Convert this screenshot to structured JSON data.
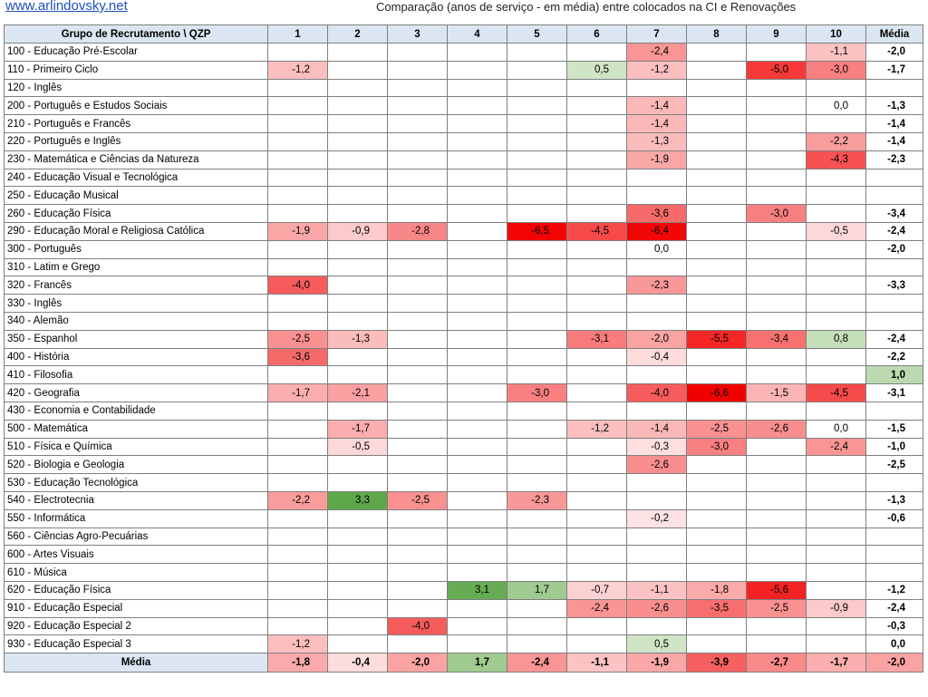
{
  "header": {
    "site": "www.arlindovsky.net",
    "title": "Comparação (anos de serviço - em média) entre colocados na CI e Renovações"
  },
  "table": {
    "corner": "Grupo de Recrutamento \\ QZP",
    "columns": [
      "1",
      "2",
      "3",
      "4",
      "5",
      "6",
      "7",
      "8",
      "9",
      "10",
      "Média"
    ],
    "rows": [
      {
        "label": "100 - Educação Pré-Escolar",
        "cells": [
          "",
          "",
          "",
          "",
          "",
          "",
          "-2,4",
          "",
          "",
          "-1,1",
          "-2,0"
        ]
      },
      {
        "label": "110 - Primeiro Ciclo",
        "cells": [
          "-1,2",
          "",
          "",
          "",
          "",
          "0,5",
          "-1,2",
          "",
          "-5,0",
          "-3,0",
          "-1,7"
        ]
      },
      {
        "label": "120 - Inglês",
        "cells": [
          "",
          "",
          "",
          "",
          "",
          "",
          "",
          "",
          "",
          "",
          ""
        ]
      },
      {
        "label": "200 - Português e Estudos Sociais",
        "cells": [
          "",
          "",
          "",
          "",
          "",
          "",
          "-1,4",
          "",
          "",
          "0,0",
          "-1,3"
        ]
      },
      {
        "label": "210 - Português e Francês",
        "cells": [
          "",
          "",
          "",
          "",
          "",
          "",
          "-1,4",
          "",
          "",
          "",
          "-1,4"
        ]
      },
      {
        "label": "220 - Português e Inglês",
        "cells": [
          "",
          "",
          "",
          "",
          "",
          "",
          "-1,3",
          "",
          "",
          "-2,2",
          "-1,4"
        ]
      },
      {
        "label": "230 - Matemática e Ciências da Natureza",
        "cells": [
          "",
          "",
          "",
          "",
          "",
          "",
          "-1,9",
          "",
          "",
          "-4,3",
          "-2,3"
        ]
      },
      {
        "label": "240 - Educação Visual e Tecnológica",
        "cells": [
          "",
          "",
          "",
          "",
          "",
          "",
          "",
          "",
          "",
          "",
          ""
        ]
      },
      {
        "label": "250 - Educação Musical",
        "cells": [
          "",
          "",
          "",
          "",
          "",
          "",
          "",
          "",
          "",
          "",
          ""
        ]
      },
      {
        "label": "260 - Educação Física",
        "cells": [
          "",
          "",
          "",
          "",
          "",
          "",
          "-3,6",
          "",
          "-3,0",
          "",
          "-3,4"
        ]
      },
      {
        "label": "290 - Educação Moral e Religiosa Católica",
        "cells": [
          "-1,9",
          "-0,9",
          "-2,8",
          "",
          "-6,5",
          "-4,5",
          "-6,4",
          "",
          "",
          "-0,5",
          "-2,4"
        ]
      },
      {
        "label": "300 - Português",
        "cells": [
          "",
          "",
          "",
          "",
          "",
          "",
          "0,0",
          "",
          "",
          "",
          "-2,0"
        ]
      },
      {
        "label": "310 - Latim e Grego",
        "cells": [
          "",
          "",
          "",
          "",
          "",
          "",
          "",
          "",
          "",
          "",
          ""
        ]
      },
      {
        "label": "320 - Francês",
        "cells": [
          "-4,0",
          "",
          "",
          "",
          "",
          "",
          "-2,3",
          "",
          "",
          "",
          "-3,3"
        ]
      },
      {
        "label": "330 - Inglês",
        "cells": [
          "",
          "",
          "",
          "",
          "",
          "",
          "",
          "",
          "",
          "",
          ""
        ]
      },
      {
        "label": "340 - Alemão",
        "cells": [
          "",
          "",
          "",
          "",
          "",
          "",
          "",
          "",
          "",
          "",
          ""
        ]
      },
      {
        "label": "350 - Espanhol",
        "cells": [
          "-2,5",
          "-1,3",
          "",
          "",
          "",
          "-3,1",
          "-2,0",
          "-5,5",
          "-3,4",
          "0,8",
          "-2,4"
        ]
      },
      {
        "label": "400 - História",
        "cells": [
          "-3,6",
          "",
          "",
          "",
          "",
          "",
          "-0,4",
          "",
          "",
          "",
          "-2,2"
        ]
      },
      {
        "label": "410 - Filosofia",
        "cells": [
          "",
          "",
          "",
          "",
          "",
          "",
          "",
          "",
          "",
          "",
          "1,0"
        ]
      },
      {
        "label": "420 - Geografia",
        "cells": [
          "-1,7",
          "-2,1",
          "",
          "",
          "-3,0",
          "",
          "-4,0",
          "-6,6",
          "-1,5",
          "-4,5",
          "-3,1"
        ]
      },
      {
        "label": "430 - Economia  e Contabilidade",
        "cells": [
          "",
          "",
          "",
          "",
          "",
          "",
          "",
          "",
          "",
          "",
          ""
        ]
      },
      {
        "label": "500 - Matemática",
        "cells": [
          "",
          "-1,7",
          "",
          "",
          "",
          "-1,2",
          "-1,4",
          "-2,5",
          "-2,6",
          "0,0",
          "-1,5"
        ]
      },
      {
        "label": "510 - Física e Química",
        "cells": [
          "",
          "-0,5",
          "",
          "",
          "",
          "",
          "-0,3",
          "-3,0",
          "",
          "-2,4",
          "-1,0"
        ]
      },
      {
        "label": "520 - Biologia e Geologia",
        "cells": [
          "",
          "",
          "",
          "",
          "",
          "",
          "-2,6",
          "",
          "",
          "",
          "-2,5"
        ]
      },
      {
        "label": "530 - Educação Tecnológica",
        "cells": [
          "",
          "",
          "",
          "",
          "",
          "",
          "",
          "",
          "",
          "",
          ""
        ]
      },
      {
        "label": "540 - Electrotecnia",
        "cells": [
          "-2,2",
          "3,3",
          "-2,5",
          "",
          "-2,3",
          "",
          "",
          "",
          "",
          "",
          "-1,3"
        ]
      },
      {
        "label": "550 - Informática",
        "cells": [
          "",
          "",
          "",
          "",
          "",
          "",
          "-0,2",
          "",
          "",
          "",
          "-0,6"
        ]
      },
      {
        "label": "560 - Ciências Agro-Pecuárias",
        "cells": [
          "",
          "",
          "",
          "",
          "",
          "",
          "",
          "",
          "",
          "",
          ""
        ]
      },
      {
        "label": "600 - Artes Visuais",
        "cells": [
          "",
          "",
          "",
          "",
          "",
          "",
          "",
          "",
          "",
          "",
          ""
        ]
      },
      {
        "label": "610 - Música",
        "cells": [
          "",
          "",
          "",
          "",
          "",
          "",
          "",
          "",
          "",
          "",
          ""
        ]
      },
      {
        "label": "620 - Educação Física",
        "cells": [
          "",
          "",
          "",
          "3,1",
          "1,7",
          "-0,7",
          "-1,1",
          "-1,8",
          "-5,6",
          "",
          "-1,2"
        ]
      },
      {
        "label": "910 - Educação Especial",
        "cells": [
          "",
          "",
          "",
          "",
          "",
          "-2,4",
          "-2,6",
          "-3,5",
          "-2,5",
          "-0,9",
          "-2,4"
        ]
      },
      {
        "label": "920 - Educação Especial 2",
        "cells": [
          "",
          "",
          "-4,0",
          "",
          "",
          "",
          "",
          "",
          "",
          "",
          "-0,3"
        ]
      },
      {
        "label": "930 - Educação Especial 3",
        "cells": [
          "-1,2",
          "",
          "",
          "",
          "",
          "",
          "0,5",
          "",
          "",
          "",
          "0,0"
        ]
      }
    ],
    "footer": {
      "label": "Média",
      "cells": [
        "-1,8",
        "-0,4",
        "-2,0",
        "1,7",
        "-2,4",
        "-1,1",
        "-1,9",
        "-3,9",
        "-2,7",
        "-1,7",
        "-2,0"
      ]
    }
  },
  "colors": {
    "header_fill": "#dbe6f2",
    "negative_light": "#fdeaea",
    "negative_strong": "#f20000",
    "positive_light": "#e4f0dc",
    "positive_strong": "#5ea84a",
    "grid_line": "#7f7f7f",
    "link": "#1f4fbf"
  }
}
